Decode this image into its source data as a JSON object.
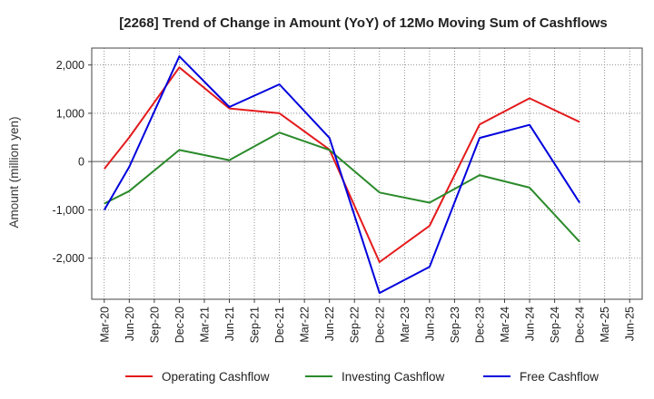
{
  "chart_data": {
    "type": "line",
    "title": "[2268]  Trend of Change in Amount (YoY) of 12Mo Moving Sum of Cashflows",
    "ylabel": "Amount (million yen)",
    "xlabel": "",
    "ylim": [
      -2850,
      2350
    ],
    "yticks": [
      2000,
      1000,
      0,
      -1000,
      -2000
    ],
    "ytick_labels": [
      "2,000",
      "1,000",
      "0",
      "-1,000",
      "-2,000"
    ],
    "categories": [
      "Mar-20",
      "Jun-20",
      "Sep-20",
      "Dec-20",
      "Mar-21",
      "Jun-21",
      "Sep-21",
      "Dec-21",
      "Mar-22",
      "Jun-22",
      "Sep-22",
      "Dec-22",
      "Mar-23",
      "Jun-23",
      "Sep-23",
      "Dec-23",
      "Mar-24",
      "Jun-24",
      "Sep-24",
      "Dec-24",
      "Mar-25",
      "Jun-25"
    ],
    "grid": true,
    "legend_position": "bottom",
    "series": [
      {
        "name": "Operating Cashflow",
        "color": "#e41a1c",
        "values": [
          -150,
          500,
          null,
          1950,
          null,
          1100,
          null,
          1000,
          null,
          250,
          null,
          -2080,
          null,
          -1330,
          null,
          770,
          null,
          1310,
          null,
          820,
          null,
          null
        ]
      },
      {
        "name": "Investing Cashflow",
        "color": "#2a8a2a",
        "values": [
          -870,
          -610,
          null,
          240,
          null,
          30,
          null,
          600,
          null,
          240,
          null,
          -640,
          null,
          -850,
          null,
          -280,
          null,
          -540,
          null,
          -1660,
          null,
          null
        ]
      },
      {
        "name": "Free Cashflow",
        "color": "#0000dd",
        "values": [
          -1000,
          -110,
          null,
          2180,
          null,
          1130,
          null,
          1600,
          null,
          490,
          null,
          -2720,
          null,
          -2180,
          null,
          490,
          null,
          760,
          null,
          -850,
          null,
          null
        ]
      }
    ]
  }
}
